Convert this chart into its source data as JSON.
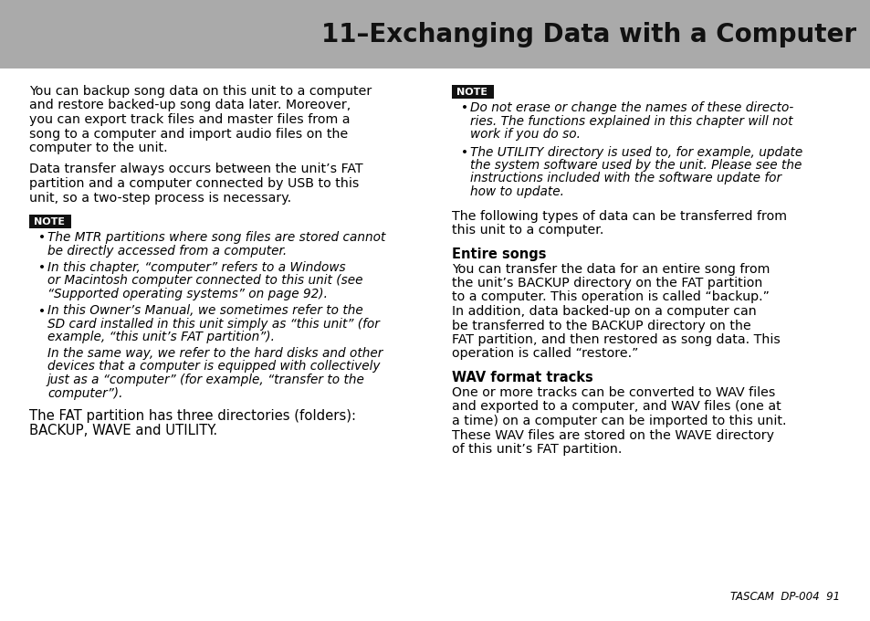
{
  "title": "11–Exchanging Data with a Computer",
  "title_bg": "#aaaaaa",
  "title_color": "#111111",
  "page_bg": "#ffffff",
  "body_color": "#000000",
  "note_bg": "#111111",
  "note_text_color": "#ffffff",
  "note_label": "NOTE",
  "left_para1_lines": [
    "You can backup song data on this unit to a computer",
    "and restore backed-up song data later. Moreover,",
    "you can export track files and master files from a",
    "song to a computer and import audio files on the",
    "computer to the unit."
  ],
  "left_para2_lines": [
    "Data transfer always occurs between the unit’s FAT",
    "partition and a computer connected by USB to this",
    "unit, so a two-step process is necessary."
  ],
  "left_bullet1_lines": [
    "The MTR partitions where song files are stored cannot",
    "be directly accessed from a computer."
  ],
  "left_bullet2_lines": [
    "In this chapter, “computer” refers to a Windows",
    "or Macintosh computer connected to this unit (see",
    "“Supported operating systems” on page 92)."
  ],
  "left_bullet3_lines": [
    "In this Owner’s Manual, we sometimes refer to the",
    "SD card installed in this unit simply as “this unit” (for",
    "example, “this unit’s FAT partition”)."
  ],
  "left_bullet3b_lines": [
    "In the same way, we refer to the hard disks and other",
    "devices that a computer is equipped with collectively",
    "just as a “computer” (for example, “transfer to the",
    "computer”)."
  ],
  "left_para3_lines": [
    "The FAT partition has three directories (folders):",
    "BACKUP, WAVE and UTILITY."
  ],
  "right_bullet1_lines": [
    "Do not erase or change the names of these directo-",
    "ries. The functions explained in this chapter will not",
    "work if you do so."
  ],
  "right_bullet2_lines": [
    "The UTILITY directory is used to, for example, update",
    "the system software used by the unit. Please see the",
    "instructions included with the software update for",
    "how to update."
  ],
  "right_para1_lines": [
    "The following types of data can be transferred from",
    "this unit to a computer."
  ],
  "section1_title": "Entire songs",
  "section1_lines": [
    "You can transfer the data for an entire song from",
    "the unit’s BACKUP directory on the FAT partition",
    "to a computer. This operation is called “backup.”",
    "In addition, data backed-up on a computer can",
    "be transferred to the BACKUP directory on the",
    "FAT partition, and then restored as song data. This",
    "operation is called “restore.”"
  ],
  "section2_title": "WAV format tracks",
  "section2_lines": [
    "One or more tracks can be converted to WAV files",
    "and exported to a computer, and WAV files (one at",
    "a time) on a computer can be imported to this unit.",
    "These WAV files are stored on the WAVE directory",
    "of this unit’s FAT partition."
  ],
  "footer_text": "TASCAM  DP-004  91"
}
